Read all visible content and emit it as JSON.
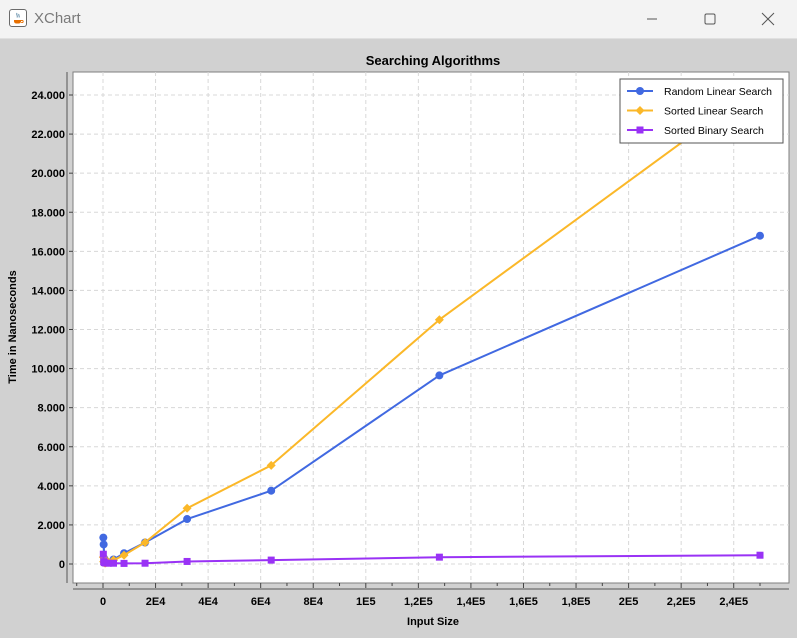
{
  "window": {
    "title": "XChart",
    "controls": {
      "minimize": "minimize",
      "maximize": "maximize",
      "close": "close"
    }
  },
  "chart_data": {
    "type": "line",
    "title": "Searching Algorithms",
    "xlabel": "Input Size",
    "ylabel": "Time in Nanoseconds",
    "xlim": [
      -10000,
      260000
    ],
    "ylim": [
      -1000,
      25000
    ],
    "x_ticks": [
      0,
      20000,
      40000,
      60000,
      80000,
      100000,
      120000,
      140000,
      160000,
      180000,
      200000,
      220000,
      240000
    ],
    "x_tick_labels": [
      "0",
      "2E4",
      "4E4",
      "6E4",
      "8E4",
      "1E5",
      "1,2E5",
      "1,4E5",
      "1,6E5",
      "1,8E5",
      "2E5",
      "2,2E5",
      "2,4E5"
    ],
    "y_ticks": [
      0,
      2000,
      4000,
      6000,
      8000,
      10000,
      12000,
      14000,
      16000,
      18000,
      20000,
      22000,
      24000
    ],
    "y_tick_labels": [
      "0",
      "2.000",
      "4.000",
      "6.000",
      "8.000",
      "10.000",
      "12.000",
      "14.000",
      "16.000",
      "18.000",
      "20.000",
      "22.000",
      "24.000"
    ],
    "grid": true,
    "legend_position": "top-right",
    "series": [
      {
        "name": "Random Linear Search",
        "color": "#4169e1",
        "marker": "circle",
        "x": [
          125,
          250,
          500,
          1000,
          2000,
          4000,
          8000,
          16000,
          32000,
          64000,
          128000,
          250000
        ],
        "y": [
          1350,
          1000,
          280,
          120,
          80,
          230,
          550,
          1100,
          2300,
          3750,
          9650,
          16800
        ]
      },
      {
        "name": "Sorted Linear Search",
        "color": "#fbb829",
        "marker": "diamond",
        "x": [
          125,
          250,
          500,
          1000,
          2000,
          4000,
          8000,
          16000,
          32000,
          64000,
          128000,
          250000
        ],
        "y": [
          350,
          120,
          60,
          50,
          100,
          200,
          450,
          1100,
          2850,
          5050,
          12500,
          24500
        ]
      },
      {
        "name": "Sorted Binary Search",
        "color": "#9932f5",
        "marker": "square",
        "x": [
          125,
          250,
          500,
          1000,
          2000,
          4000,
          8000,
          16000,
          32000,
          64000,
          128000,
          250000
        ],
        "y": [
          500,
          120,
          70,
          50,
          40,
          40,
          30,
          40,
          130,
          200,
          350,
          450
        ]
      }
    ]
  }
}
